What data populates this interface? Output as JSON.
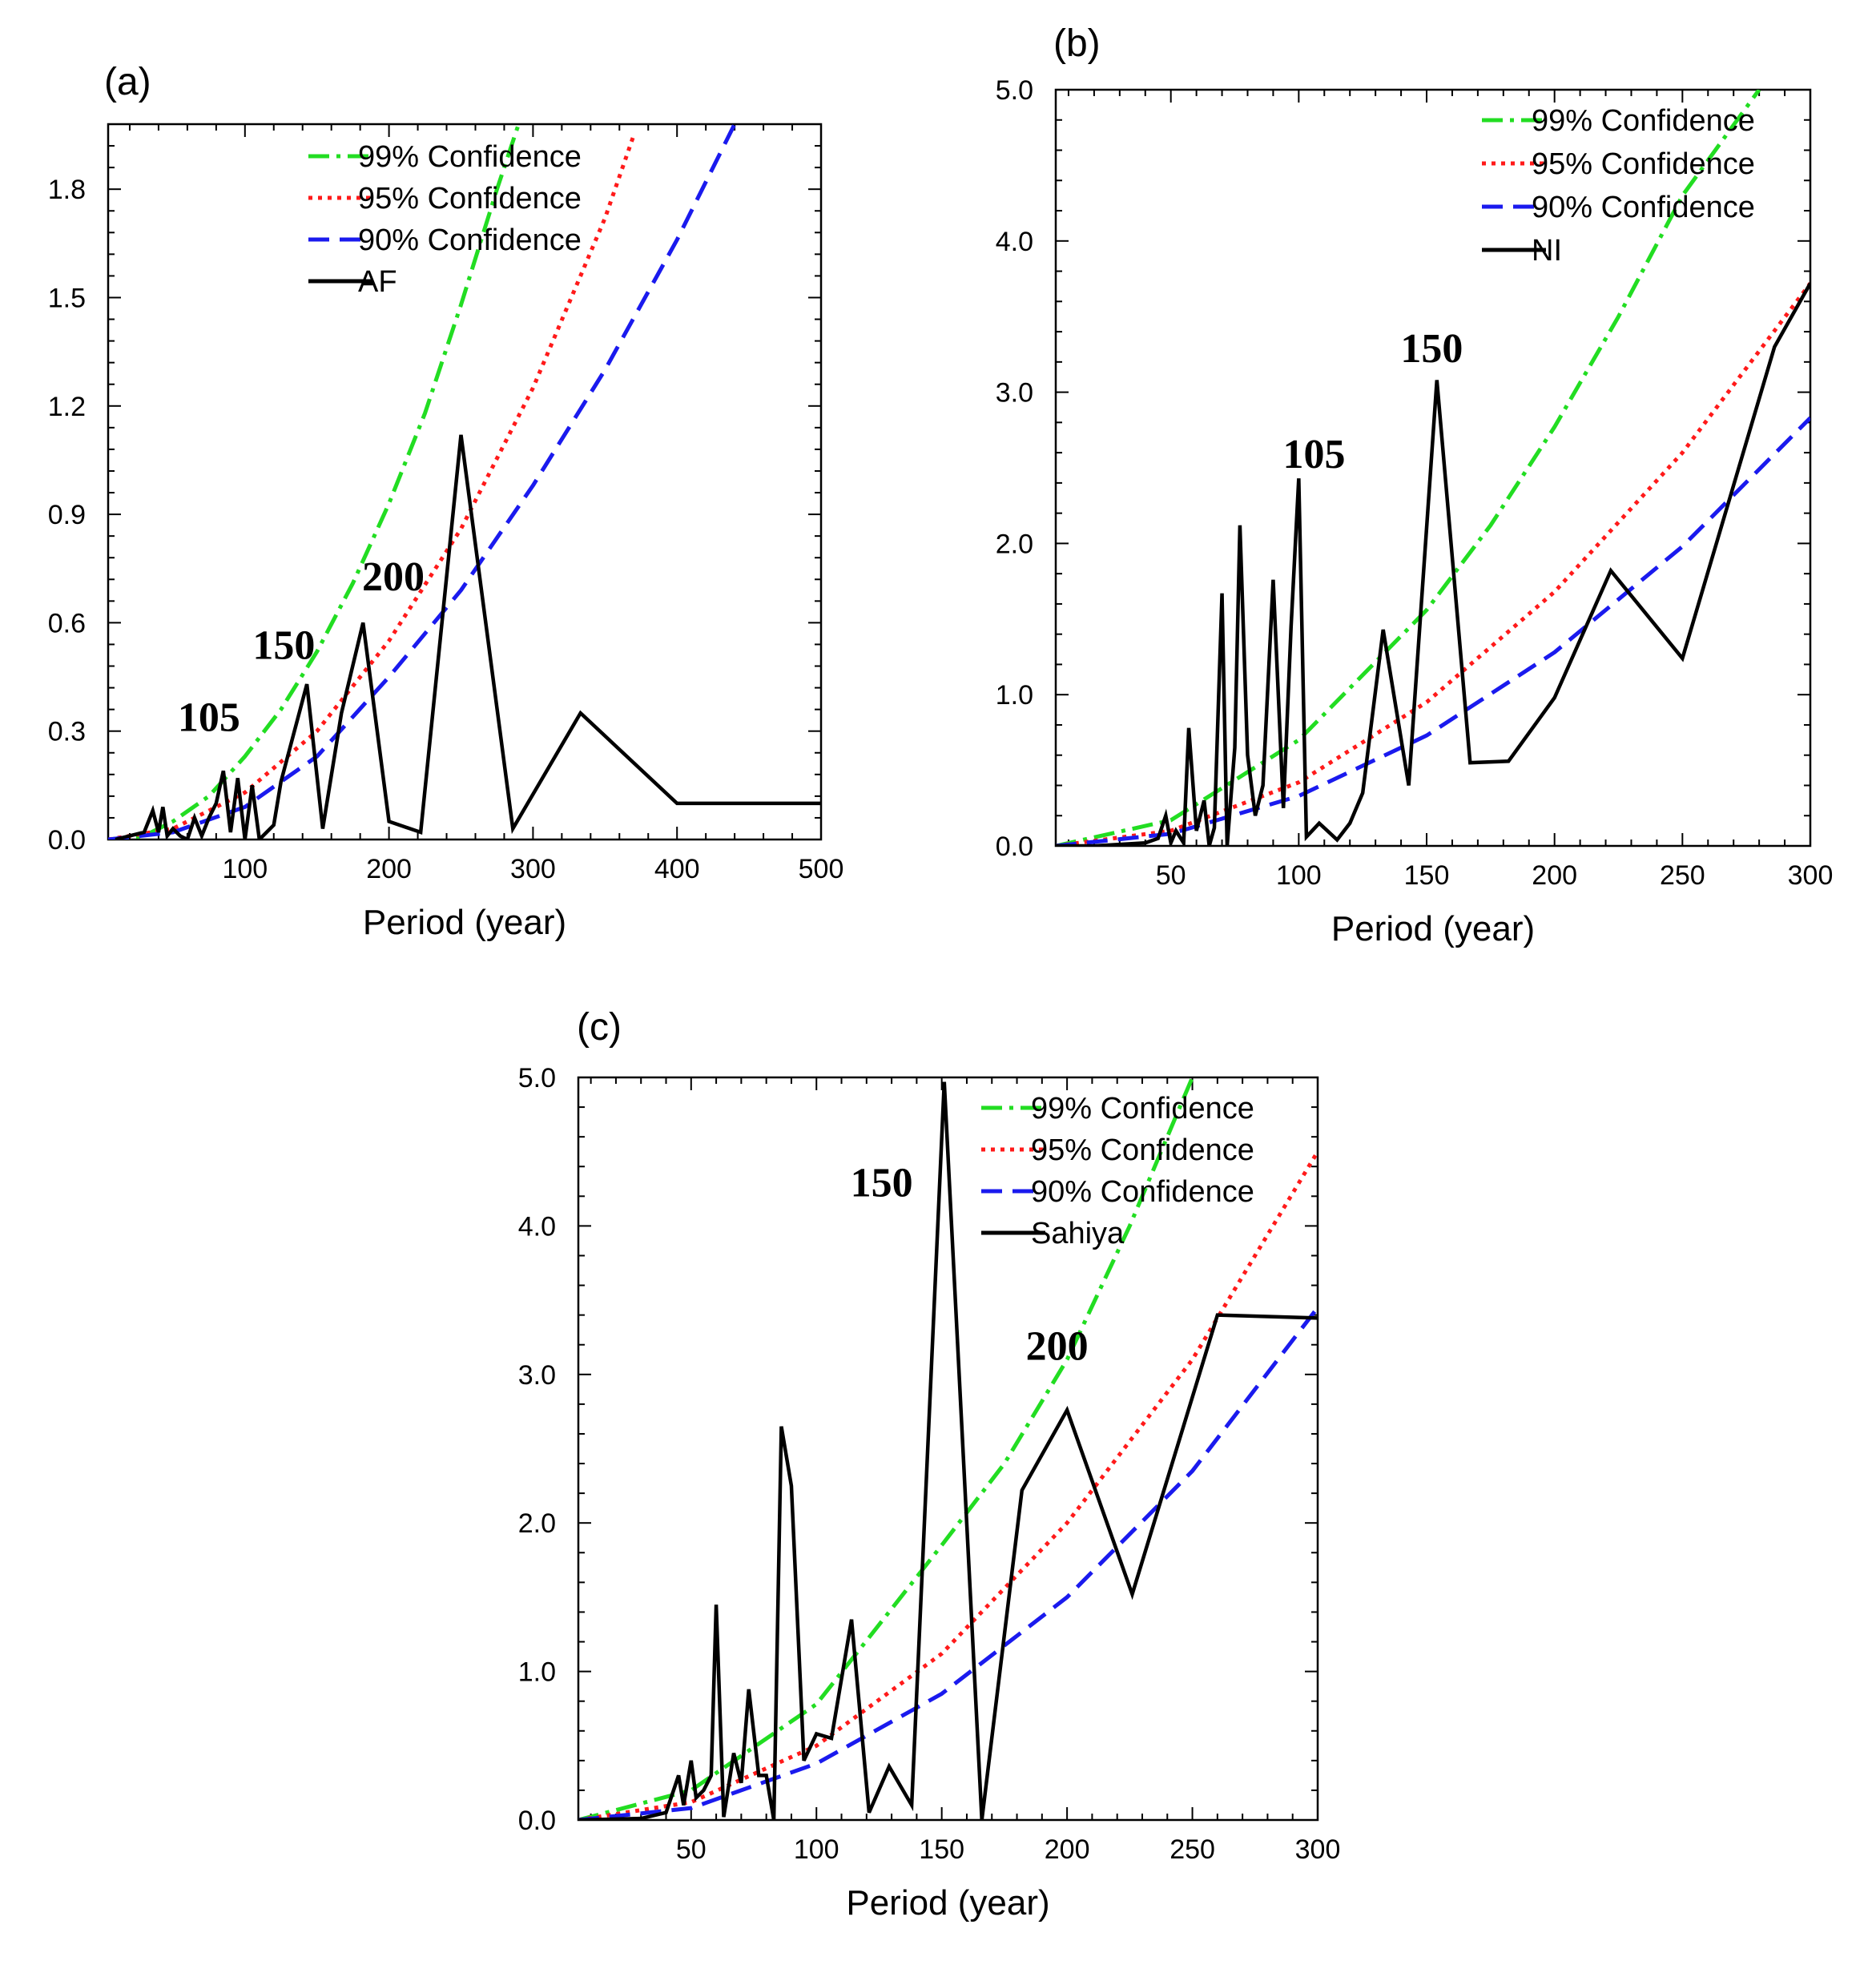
{
  "colors": {
    "c99": "#22dd22",
    "c95": "#ff1a1a",
    "c90": "#1a1aee",
    "series": "#000000"
  },
  "chart_data": [
    {
      "type": "line",
      "panel_label": "(a)",
      "xlabel": "Period (year)",
      "ylabel": "",
      "xlim": [
        5,
        500
      ],
      "ylim": [
        0,
        1.98
      ],
      "xticks": [
        100,
        200,
        300,
        400,
        500
      ],
      "xtick_labels": [
        "100",
        "200",
        "300",
        "400",
        "500"
      ],
      "yticks": [
        0,
        0.3,
        0.6,
        0.9,
        1.2,
        1.5,
        1.8
      ],
      "ytick_labels": [
        "0.0",
        "0.3",
        "0.6",
        "0.9",
        "1.2",
        "1.5",
        "1.8"
      ],
      "legend_position": "top-right",
      "confidence_series": [
        {
          "name": "99% Confidence",
          "style": "dash-dot",
          "color": "#22dd22",
          "x": [
            5,
            30,
            50,
            75,
            100,
            125,
            150,
            175,
            200,
            225,
            250,
            275,
            290
          ],
          "y": [
            0,
            0.01,
            0.05,
            0.12,
            0.23,
            0.36,
            0.52,
            0.71,
            0.93,
            1.18,
            1.48,
            1.8,
            1.98
          ]
        },
        {
          "name": "95% Confidence",
          "style": "dotted",
          "color": "#ff1a1a",
          "x": [
            5,
            50,
            100,
            150,
            200,
            250,
            300,
            350,
            370
          ],
          "y": [
            0,
            0.03,
            0.13,
            0.3,
            0.55,
            0.86,
            1.25,
            1.72,
            1.95
          ]
        },
        {
          "name": "90% Confidence",
          "style": "dashed",
          "color": "#1a1aee",
          "x": [
            5,
            50,
            100,
            150,
            200,
            250,
            300,
            350,
            400,
            440
          ],
          "y": [
            0,
            0.02,
            0.09,
            0.23,
            0.45,
            0.69,
            0.98,
            1.3,
            1.66,
            1.98
          ]
        }
      ],
      "series": [
        {
          "name": "AF",
          "color": "#000000",
          "x": [
            10,
            20,
            30,
            36,
            40,
            43,
            46,
            50,
            55,
            60,
            65,
            70,
            75,
            80,
            85,
            90,
            95,
            100,
            105,
            110,
            115,
            120,
            125,
            133,
            143,
            154,
            167,
            182,
            200,
            222,
            250,
            286,
            333,
            400,
            500
          ],
          "y": [
            0,
            0.01,
            0.02,
            0.08,
            0.02,
            0.09,
            0.01,
            0.03,
            0.01,
            0.0,
            0.06,
            0.01,
            0.06,
            0.1,
            0.19,
            0.02,
            0.17,
            0.0,
            0.15,
            0.0,
            0.02,
            0.04,
            0.16,
            0.28,
            0.43,
            0.03,
            0.35,
            0.6,
            0.05,
            0.02,
            1.12,
            0.03,
            0.35,
            0.1,
            0.1
          ]
        }
      ],
      "annotations": [
        {
          "text": "105",
          "x": 75,
          "y": 0.3
        },
        {
          "text": "150",
          "x": 127,
          "y": 0.5
        },
        {
          "text": "200",
          "x": 203,
          "y": 0.69
        }
      ]
    },
    {
      "type": "line",
      "panel_label": "(b)",
      "xlabel": "Period (year)",
      "ylabel": "",
      "xlim": [
        5,
        300
      ],
      "ylim": [
        0,
        5.0
      ],
      "xticks": [
        50,
        100,
        150,
        200,
        250,
        300
      ],
      "xtick_labels": [
        "50",
        "100",
        "150",
        "200",
        "250",
        "300"
      ],
      "yticks": [
        0,
        1,
        2,
        3,
        4,
        5
      ],
      "ytick_labels": [
        "0.0",
        "1.0",
        "2.0",
        "3.0",
        "4.0",
        "5.0"
      ],
      "legend_position": "top-right",
      "confidence_series": [
        {
          "name": "99% Confidence",
          "style": "dash-dot",
          "color": "#22dd22",
          "x": [
            5,
            50,
            100,
            150,
            175,
            200,
            225,
            250,
            280
          ],
          "y": [
            0,
            0.17,
            0.7,
            1.56,
            2.12,
            2.77,
            3.5,
            4.3,
            5.0
          ]
        },
        {
          "name": "95% Confidence",
          "style": "dotted",
          "color": "#ff1a1a",
          "x": [
            5,
            50,
            100,
            150,
            200,
            250,
            300
          ],
          "y": [
            0,
            0.1,
            0.42,
            0.95,
            1.68,
            2.6,
            3.72
          ]
        },
        {
          "name": "90% Confidence",
          "style": "dashed",
          "color": "#1a1aee",
          "x": [
            5,
            50,
            100,
            150,
            200,
            250,
            300
          ],
          "y": [
            0,
            0.08,
            0.33,
            0.73,
            1.28,
            1.98,
            2.83
          ]
        }
      ],
      "series": [
        {
          "name": "NI",
          "color": "#000000",
          "x": [
            5,
            20,
            30,
            40,
            45,
            48,
            50,
            52,
            55,
            57,
            60,
            63,
            65,
            67,
            70,
            72,
            75,
            77,
            80,
            83,
            86,
            90,
            94,
            97,
            100,
            103,
            108,
            115,
            120,
            125,
            133,
            143,
            154,
            167,
            182,
            200,
            222,
            250,
            286,
            300
          ],
          "y": [
            0,
            0.0,
            0.01,
            0.02,
            0.05,
            0.2,
            0.02,
            0.1,
            0.02,
            0.78,
            0.1,
            0.3,
            0.0,
            0.12,
            1.67,
            0.0,
            0.65,
            2.12,
            0.6,
            0.2,
            0.4,
            1.76,
            0.25,
            1.45,
            2.43,
            0.06,
            0.15,
            0.04,
            0.15,
            0.35,
            1.43,
            0.4,
            3.08,
            0.55,
            0.56,
            0.98,
            1.82,
            1.24,
            3.3,
            3.72
          ]
        }
      ],
      "annotations": [
        {
          "text": "105",
          "x": 106,
          "y": 2.5
        },
        {
          "text": "150",
          "x": 152,
          "y": 3.2
        }
      ]
    },
    {
      "type": "line",
      "panel_label": "(c)",
      "xlabel": "Period (year)",
      "ylabel": "",
      "xlim": [
        5,
        300
      ],
      "ylim": [
        0,
        5.0
      ],
      "xticks": [
        50,
        100,
        150,
        200,
        250,
        300
      ],
      "xtick_labels": [
        "50",
        "100",
        "150",
        "200",
        "250",
        "300"
      ],
      "yticks": [
        0,
        1,
        2,
        3,
        4,
        5
      ],
      "ytick_labels": [
        "0.0",
        "1.0",
        "2.0",
        "3.0",
        "4.0",
        "5.0"
      ],
      "legend_position": "top-right",
      "confidence_series": [
        {
          "name": "99% Confidence",
          "style": "dash-dot",
          "color": "#22dd22",
          "x": [
            5,
            50,
            100,
            150,
            175,
            200,
            225,
            250
          ],
          "y": [
            0,
            0.2,
            0.78,
            1.85,
            2.4,
            3.1,
            4.0,
            5.0
          ]
        },
        {
          "name": "95% Confidence",
          "style": "dotted",
          "color": "#ff1a1a",
          "x": [
            5,
            50,
            100,
            150,
            200,
            250,
            300
          ],
          "y": [
            0,
            0.12,
            0.5,
            1.12,
            2.0,
            3.1,
            4.5
          ]
        },
        {
          "name": "90% Confidence",
          "style": "dashed",
          "color": "#1a1aee",
          "x": [
            5,
            50,
            100,
            150,
            200,
            250,
            300
          ],
          "y": [
            0,
            0.08,
            0.38,
            0.85,
            1.5,
            2.35,
            3.45
          ]
        }
      ],
      "series": [
        {
          "name": "Sahiya",
          "color": "#000000",
          "x": [
            5,
            30,
            40,
            45,
            47,
            50,
            52,
            55,
            58,
            60,
            63,
            67,
            70,
            73,
            77,
            80,
            83,
            86,
            90,
            95,
            100,
            106,
            114,
            121,
            129,
            138,
            151,
            166,
            182,
            200,
            226,
            260,
            300
          ],
          "y": [
            0,
            0.01,
            0.05,
            0.3,
            0.1,
            0.4,
            0.15,
            0.2,
            0.3,
            1.45,
            0.02,
            0.45,
            0.25,
            0.88,
            0.3,
            0.3,
            0.0,
            2.65,
            2.25,
            0.4,
            0.58,
            0.55,
            1.35,
            0.05,
            0.36,
            0.1,
            4.97,
            0.0,
            2.22,
            2.76,
            1.52,
            3.4,
            3.38
          ]
        }
      ],
      "annotations": [
        {
          "text": "150",
          "x": 126,
          "y": 4.2
        },
        {
          "text": "200",
          "x": 196,
          "y": 3.1
        }
      ]
    }
  ]
}
